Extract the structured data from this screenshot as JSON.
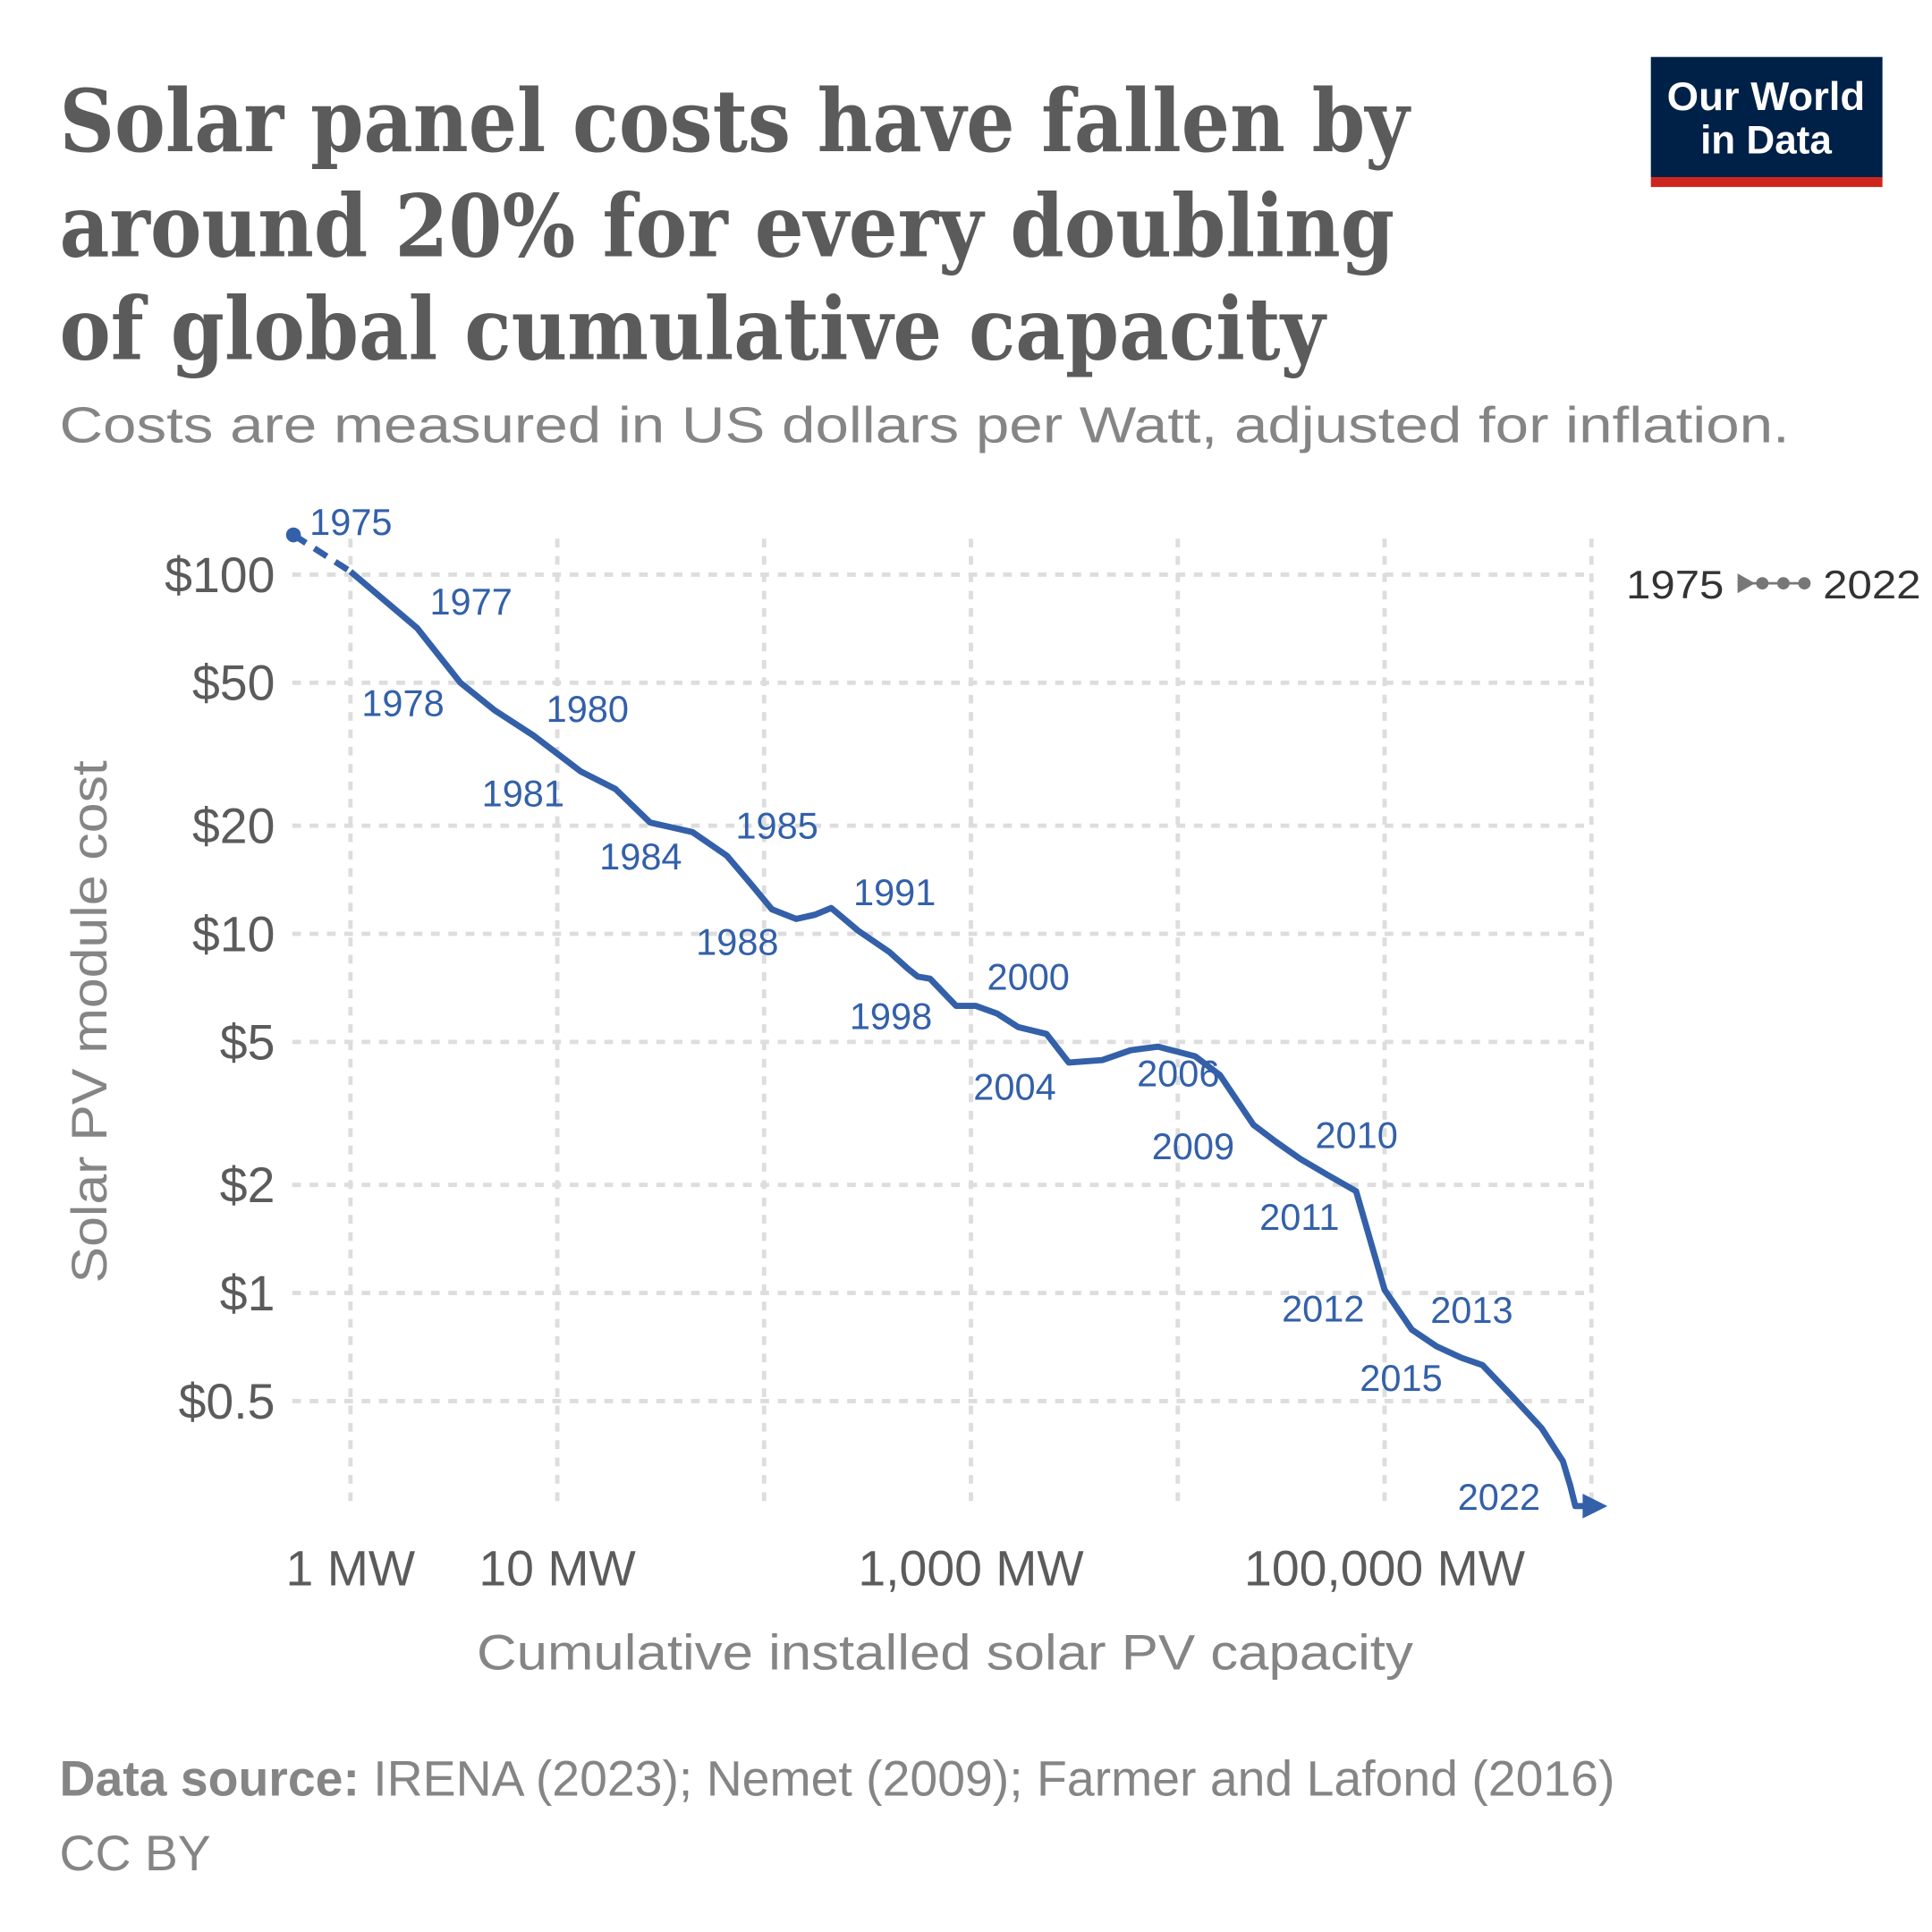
{
  "title_lines": [
    "Solar panel costs have fallen by",
    "around 20% for every doubling",
    "of global cumulative capacity"
  ],
  "subtitle": "Costs are measured in US dollars per Watt, adjusted for inflation.",
  "logo": {
    "line1": "Our World",
    "line2": "in Data",
    "bg_color": "#002147",
    "accent_color": "#ce261e"
  },
  "legend": {
    "start": "1975",
    "end": "2022",
    "icon": "timeline-arrow-dots-icon"
  },
  "footer": {
    "source_label": "Data source:",
    "source_text": " IRENA (2023); Nemet (2009); Farmer and Lafond (2016)",
    "license": "CC BY"
  },
  "chart_data": {
    "type": "line",
    "title": "Solar panel costs have fallen by around 20% for every doubling of global cumulative capacity",
    "subtitle": "Costs are measured in US dollars per Watt, adjusted for inflation.",
    "xlabel": "Cumulative installed solar PV capacity",
    "ylabel": "Solar PV module cost",
    "x_scale": "log",
    "y_scale": "log",
    "xlim": [
      0.5,
      1100000
    ],
    "ylim": [
      0.24,
      130
    ],
    "x_ticks": [
      {
        "value": 1,
        "label": "1 MW"
      },
      {
        "value": 10,
        "label": "10 MW"
      },
      {
        "value": 1000,
        "label": "1,000 MW"
      },
      {
        "value": 100000,
        "label": "100,000 MW"
      }
    ],
    "x_gridlines": [
      1,
      10,
      100,
      1000,
      10000,
      100000,
      1000000
    ],
    "y_ticks": [
      {
        "value": 100,
        "label": "$100"
      },
      {
        "value": 50,
        "label": "$50"
      },
      {
        "value": 20,
        "label": "$20"
      },
      {
        "value": 10,
        "label": "$10"
      },
      {
        "value": 5,
        "label": "$5"
      },
      {
        "value": 2,
        "label": "$2"
      },
      {
        "value": 1,
        "label": "$1"
      },
      {
        "value": 0.5,
        "label": "$0.5"
      }
    ],
    "grid": true,
    "line_color": "#3360a9",
    "grid_color": "#dddddd",
    "legend_position": "top-right",
    "points": [
      {
        "year": 1975,
        "x": 0.53,
        "y": 129
      },
      {
        "year": 1976,
        "x": 1.0,
        "y": 102
      },
      {
        "year": 1977,
        "x": 2.1,
        "y": 71
      },
      {
        "year": 1978,
        "x": 3.4,
        "y": 50
      },
      {
        "year": 1979,
        "x": 4.95,
        "y": 42
      },
      {
        "year": 1980,
        "x": 7.7,
        "y": 35.6
      },
      {
        "year": 1981,
        "x": 13,
        "y": 28.3
      },
      {
        "year": 1982,
        "x": 19.1,
        "y": 25.3
      },
      {
        "year": 1983,
        "x": 28.1,
        "y": 20.4
      },
      {
        "year": 1984,
        "x": 45,
        "y": 19.2
      },
      {
        "year": 1985,
        "x": 66,
        "y": 16.5
      },
      {
        "year": 1986,
        "x": 86,
        "y": 13.8
      },
      {
        "year": 1987,
        "x": 109,
        "y": 11.7
      },
      {
        "year": 1988,
        "x": 143,
        "y": 11.0
      },
      {
        "year": 1989,
        "x": 176,
        "y": 11.3
      },
      {
        "year": 1990,
        "x": 211,
        "y": 11.8
      },
      {
        "year": 1991,
        "x": 285,
        "y": 10.2
      },
      {
        "year": 1992,
        "x": 403,
        "y": 8.9
      },
      {
        "year": 1993,
        "x": 495,
        "y": 8.0
      },
      {
        "year": 1994,
        "x": 553,
        "y": 7.6
      },
      {
        "year": 1995,
        "x": 634,
        "y": 7.5
      },
      {
        "year": 1996,
        "x": 848,
        "y": 6.3
      },
      {
        "year": 1997,
        "x": 1057,
        "y": 6.3
      },
      {
        "year": 1998,
        "x": 1336,
        "y": 6.0
      },
      {
        "year": 1999,
        "x": 1690,
        "y": 5.5
      },
      {
        "year": 2000,
        "x": 2320,
        "y": 5.26
      },
      {
        "year": 2001,
        "x": 2972,
        "y": 4.38
      },
      {
        "year": 2002,
        "x": 4315,
        "y": 4.45
      },
      {
        "year": 2003,
        "x": 5920,
        "y": 4.74
      },
      {
        "year": 2004,
        "x": 8020,
        "y": 4.85
      },
      {
        "year": 2005,
        "x": 12130,
        "y": 4.56
      },
      {
        "year": 2006,
        "x": 16000,
        "y": 4.04
      },
      {
        "year": 2007,
        "x": 23200,
        "y": 2.94
      },
      {
        "year": 2008,
        "x": 29700,
        "y": 2.64
      },
      {
        "year": 2009,
        "x": 39200,
        "y": 2.36
      },
      {
        "year": 2010,
        "x": 53100,
        "y": 2.13
      },
      {
        "year": 2011,
        "x": 72800,
        "y": 1.92
      },
      {
        "year": 2012,
        "x": 100000,
        "y": 1.02
      },
      {
        "year": 2013,
        "x": 135500,
        "y": 0.79
      },
      {
        "year": 2014,
        "x": 178400,
        "y": 0.71
      },
      {
        "year": 2015,
        "x": 235000,
        "y": 0.66
      },
      {
        "year": 2016,
        "x": 297000,
        "y": 0.63
      },
      {
        "year": 2017,
        "x": 408000,
        "y": 0.52
      },
      {
        "year": 2018,
        "x": 575000,
        "y": 0.42
      },
      {
        "year": 2019,
        "x": 728000,
        "y": 0.34
      },
      {
        "year": 2020,
        "x": 791000,
        "y": 0.29
      },
      {
        "year": 2021,
        "x": 836000,
        "y": 0.255
      },
      {
        "year": 2022,
        "x": 1070000,
        "y": 0.255
      }
    ],
    "labeled_years": [
      "1975",
      "1977",
      "1978",
      "1980",
      "1981",
      "1984",
      "1985",
      "1988",
      "1991",
      "1998",
      "2000",
      "2004",
      "2006",
      "2009",
      "2010",
      "2011",
      "2012",
      "2013",
      "2015",
      "2022"
    ]
  }
}
